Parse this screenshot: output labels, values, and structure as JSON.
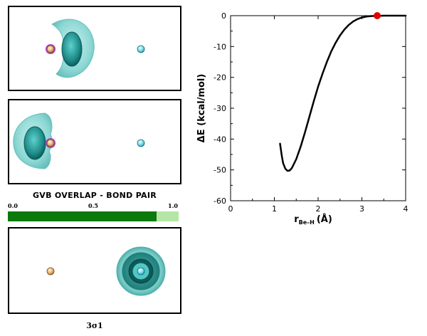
{
  "panels": {
    "overlap_title": "GVB OVERLAP - BOND PAIR",
    "overlap_ticks": [
      "0.0",
      "0.5",
      "1.0"
    ],
    "overlap_value": 0.87,
    "orbital_caption": "3σ1"
  },
  "colors": {
    "bar_fill": "#0b7a0b",
    "bar_track": "#b6e6a6",
    "curve": "#000000",
    "marker": "#e00000",
    "orbital": "#3fb6b6"
  },
  "chart_data": {
    "type": "line",
    "xlabel_main": "r",
    "xlabel_sub": "Be–H",
    "xlabel_unit": "(Å)",
    "ylabel": "ΔE (kcal/mol)",
    "xlim": [
      0,
      4
    ],
    "ylim": [
      -60,
      0
    ],
    "x_ticks": [
      "0",
      "1",
      "2",
      "3",
      "4"
    ],
    "y_ticks": [
      "0",
      "-10",
      "-20",
      "-30",
      "-40",
      "-50",
      "-60"
    ],
    "grid": false,
    "series": [
      {
        "points": [
          [
            1.13,
            -41.5
          ],
          [
            1.17,
            -45.5
          ],
          [
            1.2,
            -47.8
          ],
          [
            1.25,
            -49.6
          ],
          [
            1.3,
            -50.3
          ],
          [
            1.35,
            -50.2
          ],
          [
            1.4,
            -49.4
          ],
          [
            1.5,
            -46.5
          ],
          [
            1.6,
            -42.5
          ],
          [
            1.7,
            -37.8
          ],
          [
            1.8,
            -32.8
          ],
          [
            1.9,
            -27.8
          ],
          [
            2.0,
            -23.0
          ],
          [
            2.1,
            -18.8
          ],
          [
            2.2,
            -15.0
          ],
          [
            2.3,
            -11.6
          ],
          [
            2.4,
            -8.8
          ],
          [
            2.5,
            -6.4
          ],
          [
            2.6,
            -4.5
          ],
          [
            2.7,
            -3.0
          ],
          [
            2.8,
            -1.9
          ],
          [
            2.9,
            -1.1
          ],
          [
            3.0,
            -0.6
          ],
          [
            3.1,
            -0.3
          ],
          [
            3.2,
            -0.15
          ],
          [
            3.35,
            -0.05
          ],
          [
            3.5,
            0.0
          ],
          [
            3.7,
            0.0
          ],
          [
            4.0,
            0.0
          ]
        ]
      }
    ],
    "marker": {
      "x": 3.35,
      "y": 0.0
    }
  }
}
